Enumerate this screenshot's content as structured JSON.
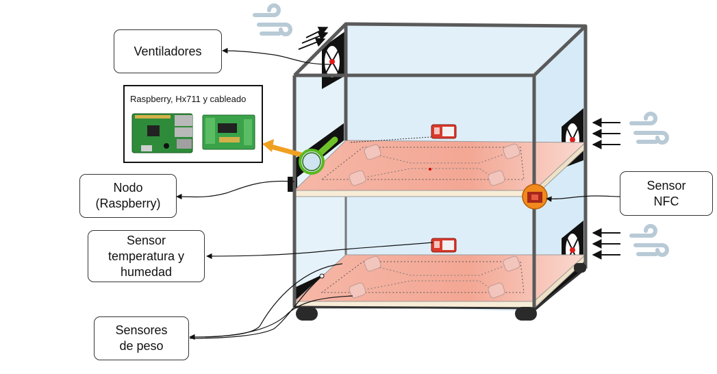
{
  "labels": {
    "fans": "Ventiladores",
    "node": "Nodo\n(Raspberry)",
    "temp_humidity": "Sensor\ntemperatura y\nhumedad",
    "weight": "Sensores\nde peso",
    "nfc": "Sensor\nNFC"
  },
  "inset": {
    "title": "Raspberry, Hx711 y cableado"
  },
  "colors": {
    "frame": "#555555",
    "glass": "#dbeef9",
    "shelf_top": "#f4b8a8",
    "shelf_edge": "#f7ecd6",
    "pcb": "#2e8b3a",
    "sensor_red": "#d93a2b",
    "nfc_orange": "#f08a1c",
    "magnifier_yellow": "#f0a020",
    "arrow": "#111111",
    "wind_icon": "#b8cad6"
  },
  "icons": [
    "wind-icon",
    "fan-icon",
    "magnifier-icon",
    "temperature-sensor-icon",
    "nfc-sensor-icon",
    "load-cell-icon",
    "raspberry-pi-board-icon",
    "hx711-board-icon"
  ]
}
